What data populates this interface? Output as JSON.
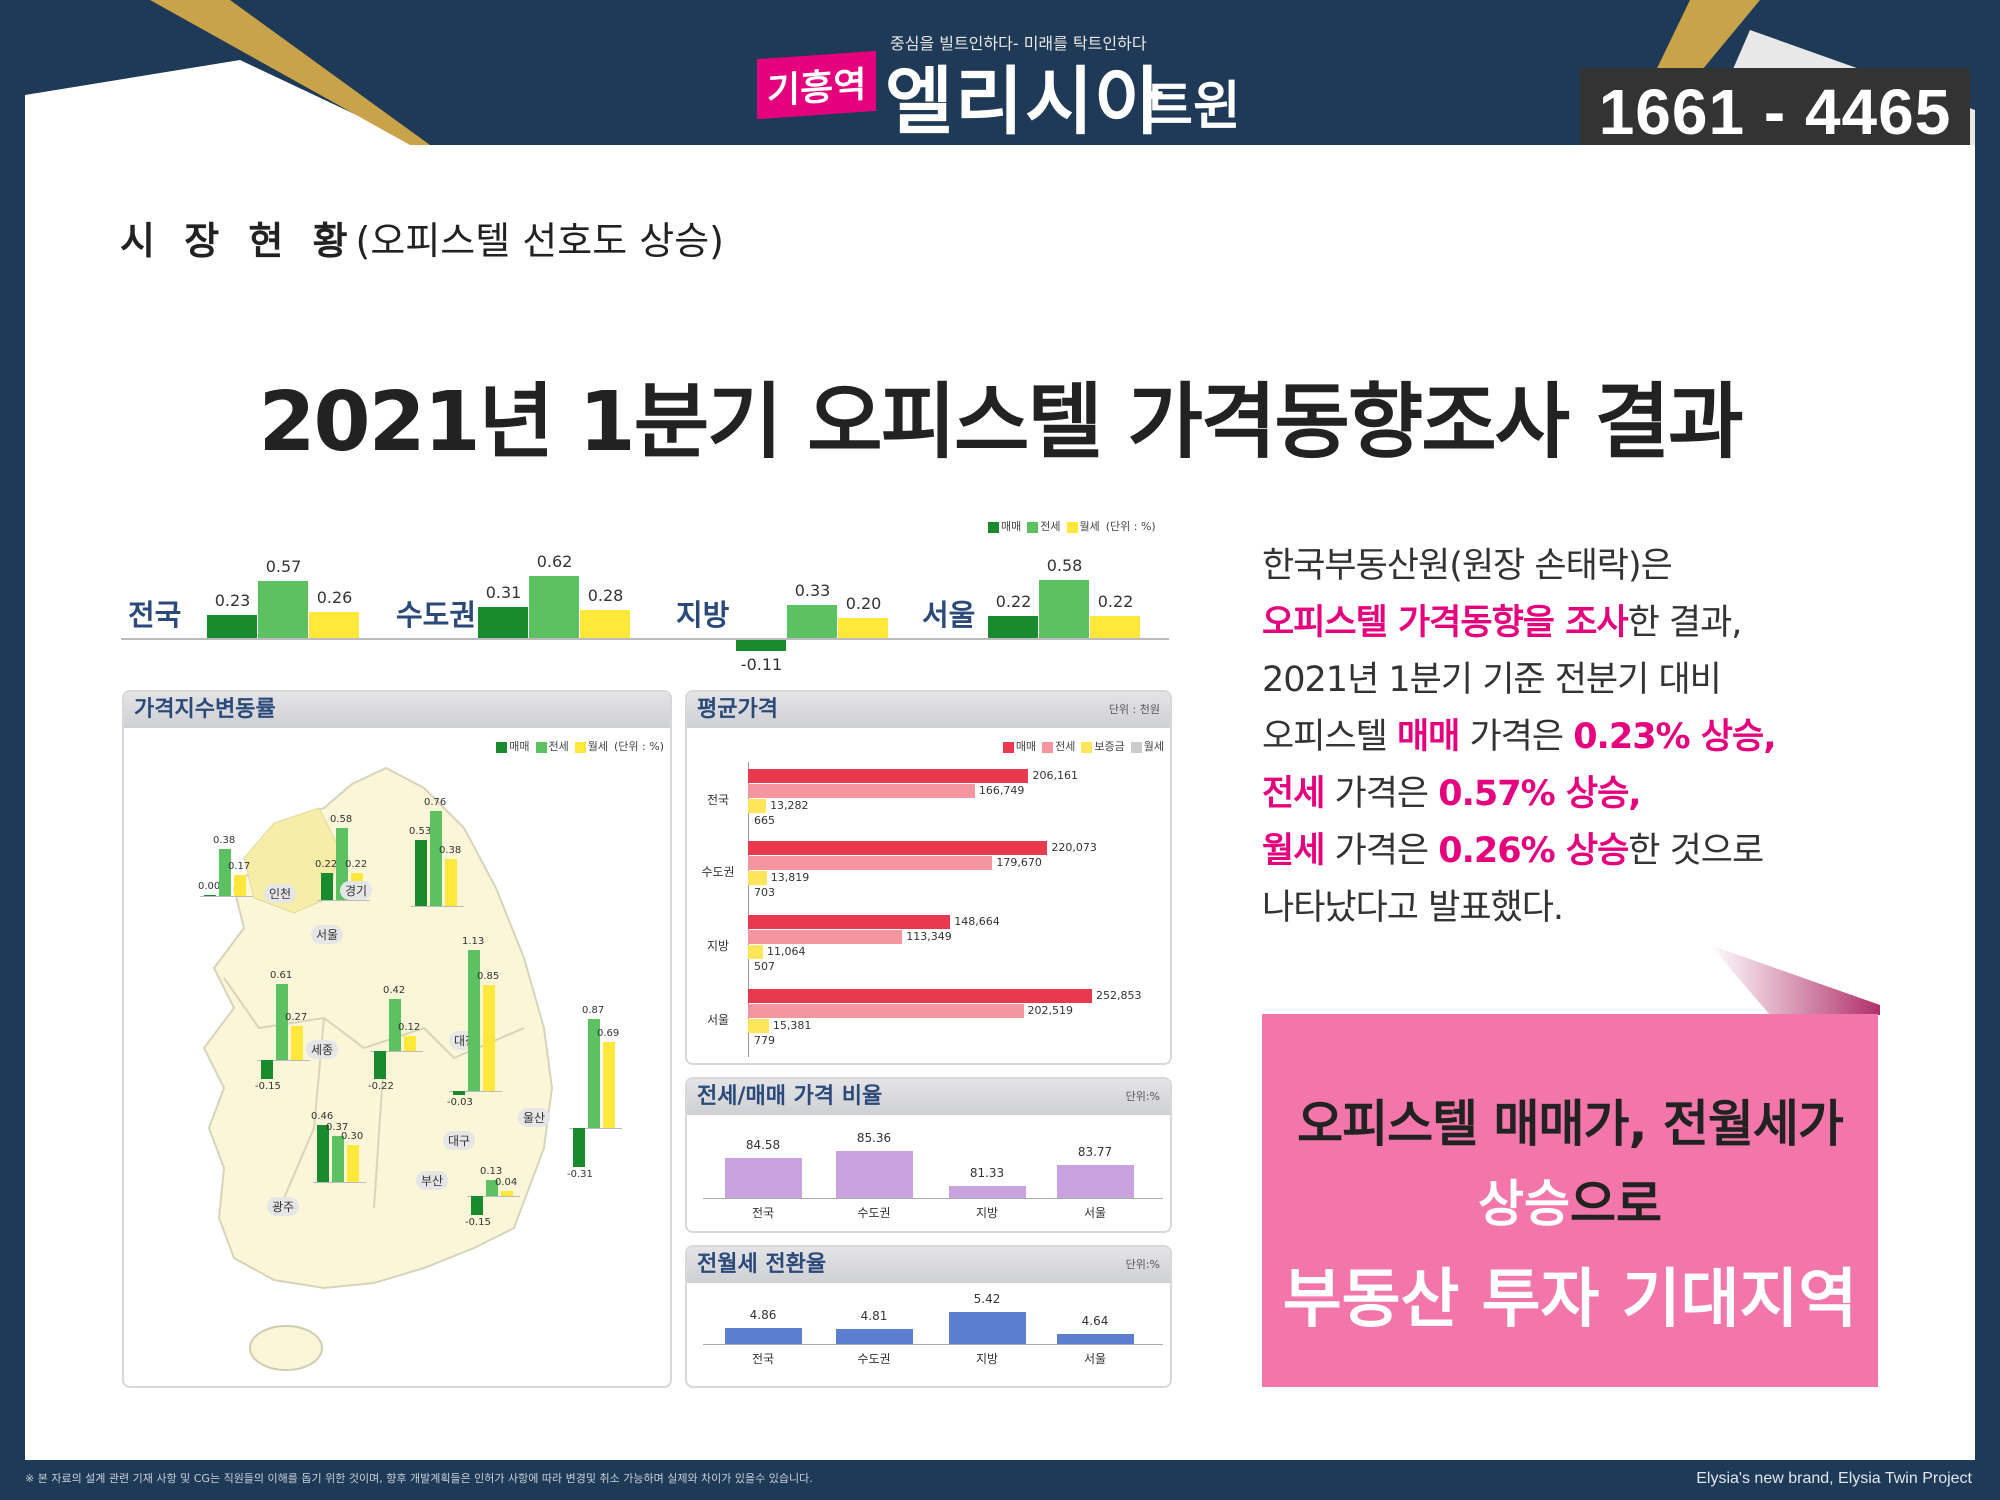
{
  "header": {
    "tagline": "중심을 빌트인하다- 미래를 탁트인하다",
    "logo_tag": "기흥역",
    "logo_main": "엘리시아",
    "logo_sub": "트윈",
    "phone": "1661 - 4465"
  },
  "section": {
    "title_bold": "시 장 현 황",
    "title_rest": "(오피스텔 선호도 상승)"
  },
  "main_title": "2021년 1분기 오피스텔 가격동향조사 결과",
  "colors": {
    "navy": "#1e3a56",
    "pink": "#e5007e",
    "sale": "#1a8a2e",
    "jeonse": "#5cc160",
    "wolse": "#ffe83a",
    "avg_sale": "#e8394f",
    "avg_jeonse": "#f5959f",
    "deposit": "#ffe55a",
    "monthly": "#cccccc",
    "ratio": "#c9a3e0",
    "conv": "#5b7ed0"
  },
  "chart_data": [
    {
      "type": "bar",
      "legend": [
        "매매",
        "전세",
        "월세"
      ],
      "unit": "(단위 : %)",
      "categories": [
        "전국",
        "수도권",
        "지방",
        "서울"
      ],
      "series": [
        {
          "name": "매매",
          "values": [
            0.23,
            0.31,
            -0.11,
            0.22
          ]
        },
        {
          "name": "전세",
          "values": [
            0.57,
            0.62,
            0.33,
            0.58
          ]
        },
        {
          "name": "월세",
          "values": [
            0.26,
            0.28,
            0.2,
            0.22
          ]
        }
      ],
      "labels": [
        [
          "0.23",
          "0.57",
          "0.26"
        ],
        [
          "0.31",
          "0.62",
          "0.28"
        ],
        [
          "-0.11",
          "0.33",
          "0.20"
        ],
        [
          "0.22",
          "0.58",
          "0.22"
        ]
      ]
    },
    {
      "type": "bar",
      "title": "가격지수변동률",
      "legend": [
        "매매",
        "전세",
        "월세"
      ],
      "unit": "(단위 : %)",
      "regions": [
        {
          "name": "인천",
          "values": [
            0.0,
            0.38,
            0.17
          ],
          "labels": [
            "0.00",
            "0.38",
            "0.17"
          ]
        },
        {
          "name": "서울",
          "values": [
            0.22,
            0.58,
            0.22
          ],
          "labels": [
            "0.22",
            "0.58",
            "0.22"
          ]
        },
        {
          "name": "경기",
          "values": [
            0.53,
            0.76,
            0.38
          ],
          "labels": [
            "0.53",
            "0.76",
            "0.38"
          ]
        },
        {
          "name": "세종",
          "values": [
            -0.15,
            0.61,
            0.27
          ],
          "labels": [
            "-0.15",
            "0.61",
            "0.27"
          ]
        },
        {
          "name": "대전",
          "values": [
            -0.22,
            0.42,
            0.12
          ],
          "labels": [
            "-0.22",
            "0.42",
            "0.12"
          ]
        },
        {
          "name": "대구",
          "values": [
            -0.03,
            1.13,
            0.85
          ],
          "labels": [
            "-0.03",
            "1.13",
            "0.85"
          ]
        },
        {
          "name": "울산",
          "values": [
            -0.31,
            0.87,
            0.69
          ],
          "labels": [
            "-0.31",
            "0.87",
            "0.69"
          ]
        },
        {
          "name": "광주",
          "values": [
            0.46,
            0.37,
            0.3
          ],
          "labels": [
            "0.46",
            "0.37",
            "0.30"
          ]
        },
        {
          "name": "부산",
          "values": [
            -0.15,
            0.13,
            0.04
          ],
          "labels": [
            "-0.15",
            "0.13",
            "0.04"
          ]
        }
      ]
    },
    {
      "type": "bar",
      "orientation": "horizontal",
      "title": "평균가격",
      "unit": "단위 : 천원",
      "legend": [
        "매매",
        "전세",
        "보증금",
        "월세"
      ],
      "categories": [
        "전국",
        "수도권",
        "지방",
        "서울"
      ],
      "series": [
        {
          "name": "매매",
          "values": [
            206161,
            220073,
            148664,
            252853
          ]
        },
        {
          "name": "전세",
          "values": [
            166749,
            179670,
            113349,
            202519
          ]
        },
        {
          "name": "보증금",
          "values": [
            13282,
            13819,
            11064,
            15381
          ]
        },
        {
          "name": "월세",
          "values": [
            665,
            703,
            507,
            779
          ]
        }
      ],
      "labels": [
        [
          "206,161",
          "166,749",
          "13,282",
          "665"
        ],
        [
          "220,073",
          "179,670",
          "13,819",
          "703"
        ],
        [
          "148,664",
          "113,349",
          "11,064",
          "507"
        ],
        [
          "252,853",
          "202,519",
          "15,381",
          "779"
        ]
      ]
    },
    {
      "type": "bar",
      "title": "전세/매매 가격 비율",
      "unit": "단위:%",
      "categories": [
        "전국",
        "수도권",
        "지방",
        "서울"
      ],
      "values": [
        84.58,
        85.36,
        81.33,
        83.77
      ],
      "labels": [
        "84.58",
        "85.36",
        "81.33",
        "83.77"
      ],
      "ylim": [
        80,
        90
      ]
    },
    {
      "type": "bar",
      "title": "전월세 전환율",
      "unit": "단위:%",
      "categories": [
        "전국",
        "수도권",
        "지방",
        "서울"
      ],
      "values": [
        4.86,
        4.81,
        5.42,
        4.64
      ],
      "labels": [
        "4.86",
        "4.81",
        "5.42",
        "4.64"
      ],
      "ylim": [
        4.3,
        6
      ]
    }
  ],
  "right_text": {
    "l1": "한국부동산원(원장 손태락)은",
    "l2a": "오피스텔 가격동향을 조사",
    "l2b": "한 결과,",
    "l3": "2021년 1분기 기준 전분기 대비",
    "l4a": "오피스텔 ",
    "l4b": "매매",
    "l4c": " 가격은 ",
    "l4d": "0.23% 상승,",
    "l5a": "전세",
    "l5b": " 가격은 ",
    "l5c": "0.57% 상승,",
    "l6a": "월세",
    "l6b": " 가격은 ",
    "l6c": "0.26% 상승",
    "l6d": "한 것으로",
    "l7": "나타났다고 발표했다."
  },
  "pink_box": {
    "line1": "오피스텔 매매가, 전월세가",
    "line2a": "상승",
    "line2b": "으로",
    "line3": "부동산 투자 기대지역"
  },
  "footer": {
    "disclaimer": "※ 본 자료의 설계 관련 기재 사항 및 CG는 직원들의 이해를 돕기 위한 것이며, 향후 개발계획들은 인허가 사항에 따라 변경및 취소 가능하며 실제와 차이가 있을수 있습니다.",
    "brand": "Elysia's new brand, Elysia Twin Project"
  }
}
